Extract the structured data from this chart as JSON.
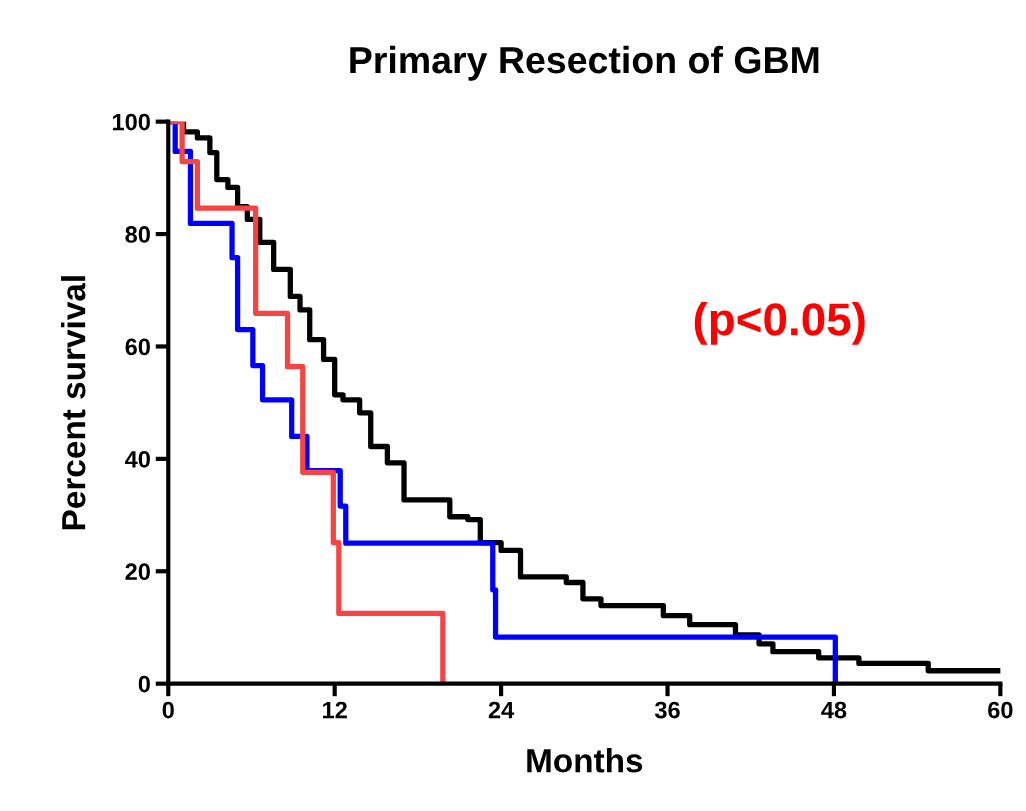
{
  "chart_data": {
    "type": "step",
    "title": "Primary Resection of GBM",
    "xlabel": "Months",
    "ylabel": "Percent survival",
    "xlim": [
      0,
      60
    ],
    "xticks": [
      0,
      12,
      24,
      36,
      48,
      60
    ],
    "ylim": [
      0,
      100
    ],
    "yticks": [
      0,
      20,
      40,
      60,
      80,
      100
    ],
    "grid": false,
    "legend": false,
    "annotations": [
      "(p<0.05)"
    ],
    "series": [
      {
        "color": "#000000",
        "x": [
          0,
          1.1,
          2.1,
          3.0,
          3.5,
          4.3,
          5.0,
          5.7,
          6.6,
          7.6,
          8.8,
          9.5,
          10.2,
          11.2,
          12.0,
          12.6,
          13.8,
          14.6,
          15.8,
          17.0,
          18.9,
          20.3,
          21.6,
          22.5,
          24.0,
          25.4,
          28.7,
          29.9,
          31.2,
          35.7,
          37.6,
          40.9,
          42.6,
          43.6,
          46.9,
          49.8,
          54.8,
          60
        ],
        "values": [
          100,
          98.2,
          97.1,
          94.5,
          89.7,
          88.3,
          84.9,
          82.6,
          78.5,
          73.7,
          68.9,
          66.5,
          61.2,
          57.7,
          51.4,
          50.5,
          48.2,
          42.2,
          39.3,
          32.7,
          32.7,
          29.7,
          29.2,
          25.1,
          23.7,
          19.0,
          18.0,
          15.1,
          13.9,
          12.1,
          10.5,
          8.7,
          7.1,
          5.7,
          4.6,
          3.6,
          2.3,
          2.3
        ]
      },
      {
        "color": "#0000ff",
        "x": [
          0,
          0.5,
          1.6,
          4.6,
          5.0,
          6.1,
          6.8,
          8.9,
          10.0,
          12.4,
          12.8,
          23.4,
          23.6,
          48.1
        ],
        "values": [
          100,
          94.7,
          81.9,
          75.8,
          63,
          56.6,
          50.5,
          44,
          37.9,
          31.6,
          25,
          16.7,
          8.3,
          0
        ]
      },
      {
        "color": "#f44444",
        "x": [
          0,
          1.0,
          2.1,
          6.3,
          8.6,
          9.7,
          11.9,
          12.3,
          19.8
        ],
        "values": [
          100,
          92.9,
          84.6,
          65.9,
          56.4,
          37.6,
          25.1,
          12.5,
          0
        ]
      }
    ]
  }
}
